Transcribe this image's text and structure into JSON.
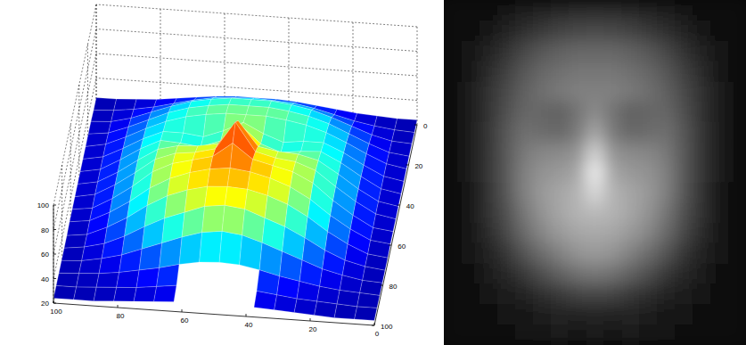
{
  "chart_data": [
    {
      "type": "surface",
      "x": [
        0,
        6.25,
        12.5,
        18.75,
        25,
        31.25,
        37.5,
        43.75,
        50,
        56.25,
        62.5,
        68.75,
        75,
        81.25,
        87.5,
        93.75,
        100
      ],
      "y": [
        0,
        6.25,
        12.5,
        18.75,
        25,
        31.25,
        37.5,
        43.75,
        50,
        56.25,
        62.5,
        68.75,
        75,
        81.25,
        87.5,
        93.75,
        100
      ],
      "z": [
        [
          24,
          24,
          25,
          26,
          28,
          30,
          32,
          33,
          33,
          33,
          32,
          30,
          28,
          26,
          25,
          24,
          24
        ],
        [
          24,
          25,
          27,
          30,
          34,
          38,
          41,
          42,
          43,
          42,
          41,
          38,
          34,
          30,
          27,
          25,
          24
        ],
        [
          25,
          26,
          30,
          36,
          42,
          47,
          50,
          52,
          52,
          52,
          50,
          47,
          42,
          36,
          30,
          26,
          25
        ],
        [
          25,
          27,
          33,
          40,
          47,
          52,
          55,
          57,
          57,
          57,
          55,
          52,
          47,
          40,
          33,
          27,
          25
        ],
        [
          25,
          28,
          35,
          43,
          50,
          55,
          58,
          60,
          60,
          60,
          58,
          55,
          50,
          43,
          35,
          28,
          25
        ],
        [
          25,
          28,
          36,
          45,
          52,
          52,
          50,
          56,
          64,
          56,
          50,
          52,
          52,
          45,
          36,
          28,
          25
        ],
        [
          25,
          28,
          37,
          47,
          55,
          54,
          52,
          58,
          72,
          58,
          52,
          54,
          55,
          47,
          37,
          28,
          25
        ],
        [
          25,
          28,
          37,
          48,
          58,
          62,
          63,
          66,
          86,
          66,
          63,
          62,
          58,
          48,
          37,
          28,
          25
        ],
        [
          25,
          28,
          37,
          48,
          60,
          66,
          68,
          72,
          95,
          72,
          68,
          66,
          60,
          48,
          37,
          28,
          25
        ],
        [
          25,
          27,
          36,
          47,
          60,
          68,
          72,
          76,
          88,
          76,
          72,
          68,
          60,
          47,
          36,
          27,
          25
        ],
        [
          25,
          27,
          35,
          45,
          57,
          66,
          72,
          76,
          78,
          76,
          72,
          66,
          57,
          45,
          35,
          27,
          25
        ],
        [
          24,
          26,
          33,
          42,
          53,
          62,
          68,
          72,
          73,
          72,
          68,
          62,
          53,
          42,
          33,
          26,
          24
        ],
        [
          24,
          26,
          30,
          37,
          46,
          54,
          60,
          66,
          68,
          66,
          60,
          54,
          46,
          37,
          30,
          26,
          24
        ],
        [
          24,
          25,
          28,
          32,
          38,
          44,
          50,
          55,
          57,
          55,
          50,
          44,
          38,
          32,
          28,
          25,
          24
        ],
        [
          24,
          25,
          26,
          28,
          31,
          34,
          38,
          41,
          42,
          41,
          38,
          34,
          31,
          28,
          26,
          25,
          24
        ],
        [
          24,
          24,
          25,
          26,
          27,
          29,
          31,
          null,
          null,
          null,
          31,
          29,
          27,
          26,
          25,
          24,
          24
        ],
        [
          24,
          24,
          24,
          25,
          26,
          27,
          28,
          null,
          null,
          null,
          28,
          27,
          26,
          25,
          24,
          24,
          24
        ]
      ],
      "xlim": [
        0,
        100
      ],
      "xticks": [
        0,
        20,
        40,
        60,
        80,
        100
      ],
      "ylim": [
        0,
        100
      ],
      "yticks": [
        0,
        20,
        40,
        60,
        80,
        100
      ],
      "zlim": [
        20,
        100
      ],
      "zticks": [
        20,
        40,
        60,
        80,
        100
      ],
      "grid": true
    },
    {
      "type": "image",
      "z": [
        [
          24,
          24,
          25,
          26,
          28,
          30,
          32,
          33,
          33,
          33,
          32,
          30,
          28,
          26,
          25,
          24,
          24
        ],
        [
          24,
          25,
          27,
          30,
          34,
          38,
          41,
          42,
          43,
          42,
          41,
          38,
          34,
          30,
          27,
          25,
          24
        ],
        [
          25,
          26,
          30,
          36,
          42,
          47,
          50,
          52,
          52,
          52,
          50,
          47,
          42,
          36,
          30,
          26,
          25
        ],
        [
          25,
          27,
          33,
          40,
          47,
          52,
          55,
          57,
          57,
          57,
          55,
          52,
          47,
          40,
          33,
          27,
          25
        ],
        [
          25,
          28,
          35,
          43,
          50,
          55,
          58,
          60,
          60,
          60,
          58,
          55,
          50,
          43,
          35,
          28,
          25
        ],
        [
          25,
          28,
          36,
          45,
          52,
          52,
          50,
          56,
          64,
          56,
          50,
          52,
          52,
          45,
          36,
          28,
          25
        ],
        [
          25,
          28,
          37,
          47,
          55,
          54,
          52,
          58,
          72,
          58,
          52,
          54,
          55,
          47,
          37,
          28,
          25
        ],
        [
          25,
          28,
          37,
          48,
          58,
          62,
          63,
          66,
          86,
          66,
          63,
          62,
          58,
          48,
          37,
          28,
          25
        ],
        [
          25,
          28,
          37,
          48,
          60,
          66,
          68,
          72,
          95,
          72,
          68,
          66,
          60,
          48,
          37,
          28,
          25
        ],
        [
          25,
          27,
          36,
          47,
          60,
          68,
          72,
          76,
          88,
          76,
          72,
          68,
          60,
          47,
          36,
          27,
          25
        ],
        [
          25,
          27,
          35,
          45,
          57,
          66,
          72,
          76,
          78,
          76,
          72,
          66,
          57,
          45,
          35,
          27,
          25
        ],
        [
          24,
          26,
          33,
          42,
          53,
          62,
          68,
          72,
          73,
          72,
          68,
          62,
          53,
          42,
          33,
          26,
          24
        ],
        [
          24,
          26,
          30,
          37,
          46,
          54,
          60,
          66,
          68,
          66,
          60,
          54,
          46,
          37,
          30,
          26,
          24
        ],
        [
          24,
          25,
          28,
          32,
          38,
          44,
          50,
          55,
          57,
          55,
          50,
          44,
          38,
          32,
          28,
          25,
          24
        ],
        [
          24,
          25,
          26,
          28,
          31,
          34,
          38,
          41,
          42,
          41,
          38,
          34,
          31,
          28,
          26,
          25,
          24
        ],
        [
          24,
          24,
          25,
          26,
          27,
          29,
          31,
          30,
          31,
          30,
          31,
          29,
          27,
          26,
          25,
          24,
          24
        ],
        [
          24,
          24,
          24,
          25,
          26,
          27,
          28,
          27,
          28,
          27,
          28,
          27,
          26,
          25,
          24,
          24,
          24
        ]
      ],
      "zlim": [
        20,
        100
      ],
      "tick_labels": false
    }
  ]
}
